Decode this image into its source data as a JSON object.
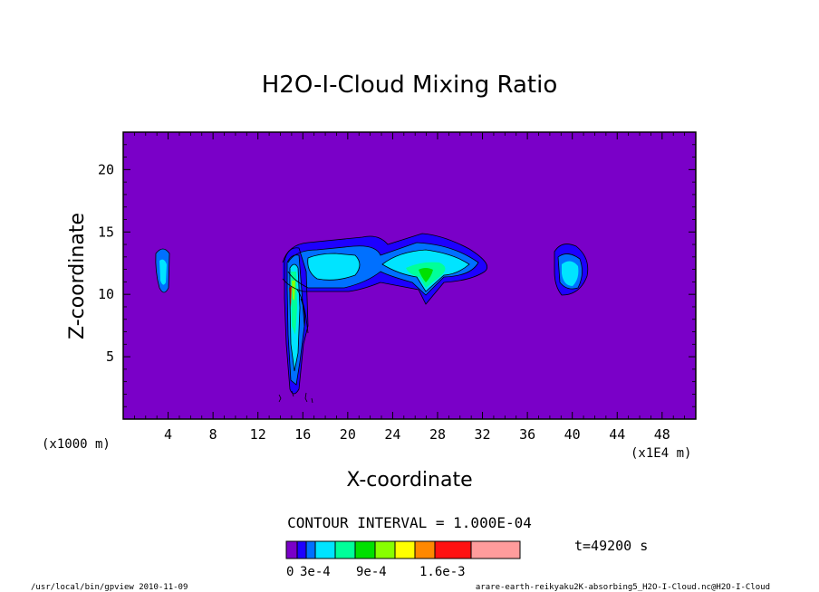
{
  "chart_data": {
    "type": "heatmap",
    "title": "H2O-I-Cloud Mixing Ratio",
    "xlabel": "X-coordinate",
    "ylabel": "Z-coordinate",
    "x_axis_note": "(x1000 m)",
    "x_scale_note": "(x1E4 m)",
    "xlim": [
      0,
      51
    ],
    "ylim": [
      0,
      23
    ],
    "x_ticks": [
      4,
      8,
      12,
      16,
      20,
      24,
      28,
      32,
      36,
      40,
      44,
      48
    ],
    "y_ticks": [
      5,
      10,
      15,
      20
    ],
    "contour_interval_text": "CONTOUR INTERVAL = 1.000E-04",
    "time_text": "t=49200 s",
    "colorbar": {
      "labels": [
        "0",
        "3e-4",
        "9e-4",
        "1.6e-3"
      ],
      "colors": [
        "#7a00c8",
        "#1e00ff",
        "#0070ff",
        "#00e4ff",
        "#00ff99",
        "#00e000",
        "#88ff00",
        "#ffff00",
        "#ff8800",
        "#ff1111",
        "#ff9c9c"
      ]
    },
    "background_color": "#7a00c8"
  },
  "footer": {
    "left": "/usr/local/bin/gpview  2010-11-09",
    "right": "arare-earth-reikyaku2K-absorbing5_H2O-I-Cloud.nc@H2O-I-Cloud"
  }
}
